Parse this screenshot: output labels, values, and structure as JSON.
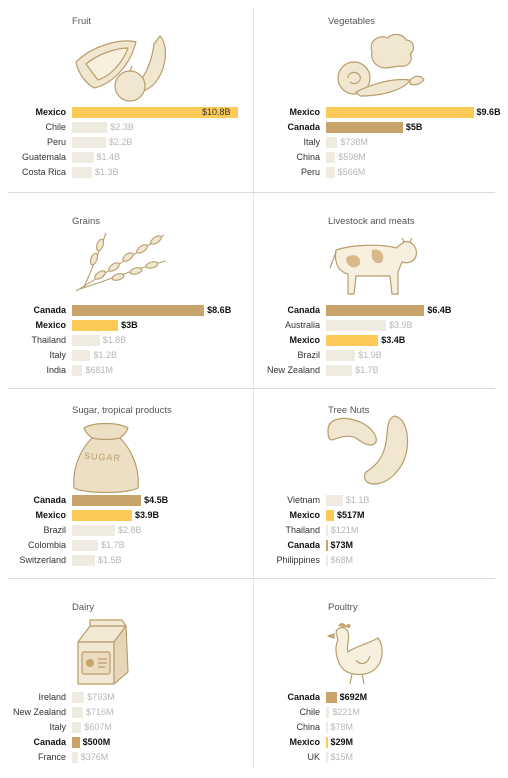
{
  "colors": {
    "mexico": "#fdc957",
    "canada": "#c8a36a",
    "other": "#efebe1",
    "illus_fill": "#f1e6cf",
    "illus_stroke": "#b89d6d"
  },
  "chart_data": [
    {
      "type": "bar",
      "title": "Fruit",
      "icon": "fruit-icon",
      "max": 10.8,
      "rows": [
        {
          "label": "Mexico",
          "value": 10.8,
          "value_label": "$10.8B",
          "group": "mexico",
          "highlight": true
        },
        {
          "label": "Chile",
          "value": 2.3,
          "value_label": "$2.3B",
          "group": "other",
          "highlight": false
        },
        {
          "label": "Peru",
          "value": 2.2,
          "value_label": "$2.2B",
          "group": "other",
          "highlight": false
        },
        {
          "label": "Guatemala",
          "value": 1.4,
          "value_label": "$1.4B",
          "group": "other",
          "highlight": false
        },
        {
          "label": "Costa Rica",
          "value": 1.3,
          "value_label": "$1.3B",
          "group": "other",
          "highlight": false
        }
      ]
    },
    {
      "type": "bar",
      "title": "Vegetables",
      "icon": "vegetables-icon",
      "max": 10.8,
      "rows": [
        {
          "label": "Mexico",
          "value": 9.6,
          "value_label": "$9.6B",
          "group": "mexico",
          "highlight": true
        },
        {
          "label": "Canada",
          "value": 5.0,
          "value_label": "$5B",
          "group": "canada",
          "highlight": true
        },
        {
          "label": "Italy",
          "value": 0.738,
          "value_label": "$738M",
          "group": "other",
          "highlight": false
        },
        {
          "label": "China",
          "value": 0.598,
          "value_label": "$598M",
          "group": "other",
          "highlight": false
        },
        {
          "label": "Peru",
          "value": 0.566,
          "value_label": "$566M",
          "group": "other",
          "highlight": false
        }
      ]
    },
    {
      "type": "bar",
      "title": "Grains",
      "icon": "grains-icon",
      "max": 10.8,
      "rows": [
        {
          "label": "Canada",
          "value": 8.6,
          "value_label": "$8.6B",
          "group": "canada",
          "highlight": true
        },
        {
          "label": "Mexico",
          "value": 3.0,
          "value_label": "$3B",
          "group": "mexico",
          "highlight": true
        },
        {
          "label": "Thailand",
          "value": 1.8,
          "value_label": "$1.8B",
          "group": "other",
          "highlight": false
        },
        {
          "label": "Italy",
          "value": 1.2,
          "value_label": "$1.2B",
          "group": "other",
          "highlight": false
        },
        {
          "label": "India",
          "value": 0.681,
          "value_label": "$681M",
          "group": "other",
          "highlight": false
        }
      ]
    },
    {
      "type": "bar",
      "title": "Livestock and meats",
      "icon": "cow-icon",
      "max": 10.8,
      "rows": [
        {
          "label": "Canada",
          "value": 6.4,
          "value_label": "$6.4B",
          "group": "canada",
          "highlight": true
        },
        {
          "label": "Australia",
          "value": 3.9,
          "value_label": "$3.9B",
          "group": "other",
          "highlight": false
        },
        {
          "label": "Mexico",
          "value": 3.4,
          "value_label": "$3.4B",
          "group": "mexico",
          "highlight": true
        },
        {
          "label": "Brazil",
          "value": 1.9,
          "value_label": "$1.9B",
          "group": "other",
          "highlight": false
        },
        {
          "label": "New Zealand",
          "value": 1.7,
          "value_label": "$1.7B",
          "group": "other",
          "highlight": false
        }
      ]
    },
    {
      "type": "bar",
      "title": "Sugar, tropical products",
      "icon": "sugar-sack-icon",
      "icon_text": "SUGAR",
      "max": 10.8,
      "rows": [
        {
          "label": "Canada",
          "value": 4.5,
          "value_label": "$4.5B",
          "group": "canada",
          "highlight": true
        },
        {
          "label": "Mexico",
          "value": 3.9,
          "value_label": "$3.9B",
          "group": "mexico",
          "highlight": true
        },
        {
          "label": "Brazil",
          "value": 2.8,
          "value_label": "$2.8B",
          "group": "other",
          "highlight": false
        },
        {
          "label": "Colombia",
          "value": 1.7,
          "value_label": "$1.7B",
          "group": "other",
          "highlight": false
        },
        {
          "label": "Switzerland",
          "value": 1.5,
          "value_label": "$1.5B",
          "group": "other",
          "highlight": false
        }
      ]
    },
    {
      "type": "bar",
      "title": "Tree Nuts",
      "icon": "nuts-icon",
      "max": 10.8,
      "rows": [
        {
          "label": "Vietnam",
          "value": 1.1,
          "value_label": "$1.1B",
          "group": "other",
          "highlight": false
        },
        {
          "label": "Mexico",
          "value": 0.517,
          "value_label": "$517M",
          "group": "mexico",
          "highlight": true
        },
        {
          "label": "Thailand",
          "value": 0.121,
          "value_label": "$121M",
          "group": "other",
          "highlight": false
        },
        {
          "label": "Canada",
          "value": 0.073,
          "value_label": "$73M",
          "group": "canada",
          "highlight": true
        },
        {
          "label": "Philippines",
          "value": 0.068,
          "value_label": "$68M",
          "group": "other",
          "highlight": false
        }
      ]
    },
    {
      "type": "bar",
      "title": "Dairy",
      "icon": "milk-carton-icon",
      "max": 10.8,
      "rows": [
        {
          "label": "Ireland",
          "value": 0.793,
          "value_label": "$793M",
          "group": "other",
          "highlight": false
        },
        {
          "label": "New Zealand",
          "value": 0.716,
          "value_label": "$716M",
          "group": "other",
          "highlight": false
        },
        {
          "label": "Italy",
          "value": 0.607,
          "value_label": "$607M",
          "group": "other",
          "highlight": false
        },
        {
          "label": "Canada",
          "value": 0.5,
          "value_label": "$500M",
          "group": "canada",
          "highlight": true
        },
        {
          "label": "France",
          "value": 0.376,
          "value_label": "$376M",
          "group": "other",
          "highlight": false
        }
      ]
    },
    {
      "type": "bar",
      "title": "Poultry",
      "icon": "chicken-icon",
      "max": 10.8,
      "rows": [
        {
          "label": "Canada",
          "value": 0.692,
          "value_label": "$692M",
          "group": "canada",
          "highlight": true
        },
        {
          "label": "Chile",
          "value": 0.221,
          "value_label": "$221M",
          "group": "other",
          "highlight": false
        },
        {
          "label": "China",
          "value": 0.078,
          "value_label": "$78M",
          "group": "other",
          "highlight": false
        },
        {
          "label": "Mexico",
          "value": 0.029,
          "value_label": "$29M",
          "group": "mexico",
          "highlight": true
        },
        {
          "label": "UK",
          "value": 0.015,
          "value_label": "$15M",
          "group": "other",
          "highlight": false
        }
      ]
    }
  ]
}
